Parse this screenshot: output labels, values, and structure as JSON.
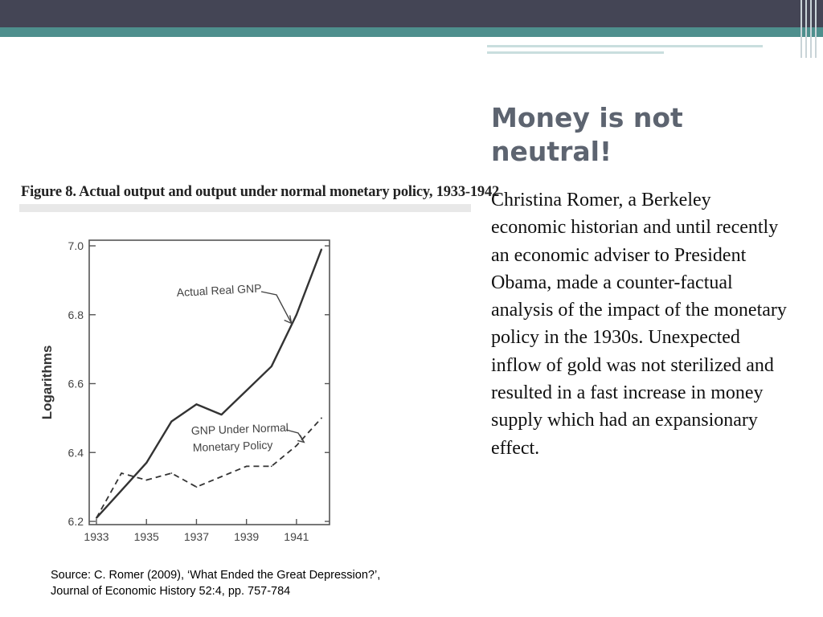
{
  "slide": {
    "title": "Money is not neutral!",
    "body": "Christina Romer, a Berkeley economic historian and until recently  an economic adviser to President Obama, made a counter-factual analysis of the impact of the monetary policy in the 1930s. Unexpected inflow of gold was not sterilized and resulted in a fast increase in money supply which  had an expansionary effect.",
    "source_line1": "Source: C. Romer (2009), ‘What Ended the Great Depression?’,",
    "source_line2": "Journal of Economic History 52:4, pp. 757-784"
  },
  "colors": {
    "top_bar": "#444555",
    "teal_accent": "#4e8f8d",
    "title_text": "#5d6470"
  },
  "chart_data": {
    "type": "line",
    "title": "Figure 8. Actual output and output under normal monetary policy, 1933-1942",
    "ylabel": "Logarithms",
    "xlabel": "",
    "xlim": [
      1933,
      1942
    ],
    "ylim": [
      6.2,
      7.0
    ],
    "x_ticks": [
      "1933",
      "1935",
      "1937",
      "1939",
      "1941"
    ],
    "y_ticks": [
      "7.0",
      "6.8",
      "6.6",
      "6.4",
      "6.2"
    ],
    "grid": false,
    "series": [
      {
        "name": "Actual Real GNP",
        "style": "solid",
        "x": [
          1933,
          1934,
          1935,
          1936,
          1937,
          1938,
          1939,
          1940,
          1941,
          1942
        ],
        "y": [
          6.21,
          6.29,
          6.37,
          6.49,
          6.54,
          6.51,
          6.58,
          6.65,
          6.8,
          6.99
        ]
      },
      {
        "name": "GNP Under Normal Monetary Policy",
        "style": "dashed",
        "x": [
          1933,
          1934,
          1935,
          1936,
          1937,
          1938,
          1939,
          1940,
          1941,
          1942
        ],
        "y": [
          6.21,
          6.34,
          6.32,
          6.34,
          6.3,
          6.33,
          6.36,
          6.36,
          6.42,
          6.5
        ]
      }
    ],
    "annotations": [
      {
        "text": "Actual Real GNP",
        "series": 0
      },
      {
        "text": "GNP Under Normal Monetary Policy",
        "series": 1
      }
    ]
  }
}
